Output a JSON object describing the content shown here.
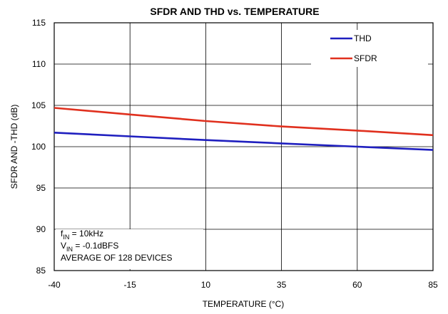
{
  "chart_data": {
    "type": "line",
    "title": "SFDR AND THD vs. TEMPERATURE",
    "xlabel": "TEMPERATURE (°C)",
    "ylabel": "SFDR AND -THD (dB)",
    "xlim": [
      -40,
      85
    ],
    "ylim": [
      85,
      115
    ],
    "x_ticks": [
      -40,
      -15,
      10,
      35,
      60,
      85
    ],
    "y_ticks": [
      85,
      90,
      95,
      100,
      105,
      110,
      115
    ],
    "grid": true,
    "legend": "top-right",
    "series": [
      {
        "name": "THD",
        "color": "#1f1fbf",
        "x": [
          -40,
          -15,
          10,
          35,
          60,
          85
        ],
        "values": [
          101.7,
          101.25,
          100.8,
          100.4,
          100.0,
          99.6
        ]
      },
      {
        "name": "SFDR",
        "color": "#e0301e",
        "x": [
          -40,
          -15,
          10,
          35,
          60,
          85
        ],
        "values": [
          104.7,
          103.9,
          103.1,
          102.45,
          101.95,
          101.4
        ]
      }
    ],
    "annotation": {
      "line1_prefix": "f",
      "line1_sub": "IN",
      "line1_rest": " = 10kHz",
      "line2_prefix": "V",
      "line2_sub": "IN",
      "line2_rest": " = -0.1dBFS",
      "line3": "AVERAGE OF 128 DEVICES"
    }
  }
}
